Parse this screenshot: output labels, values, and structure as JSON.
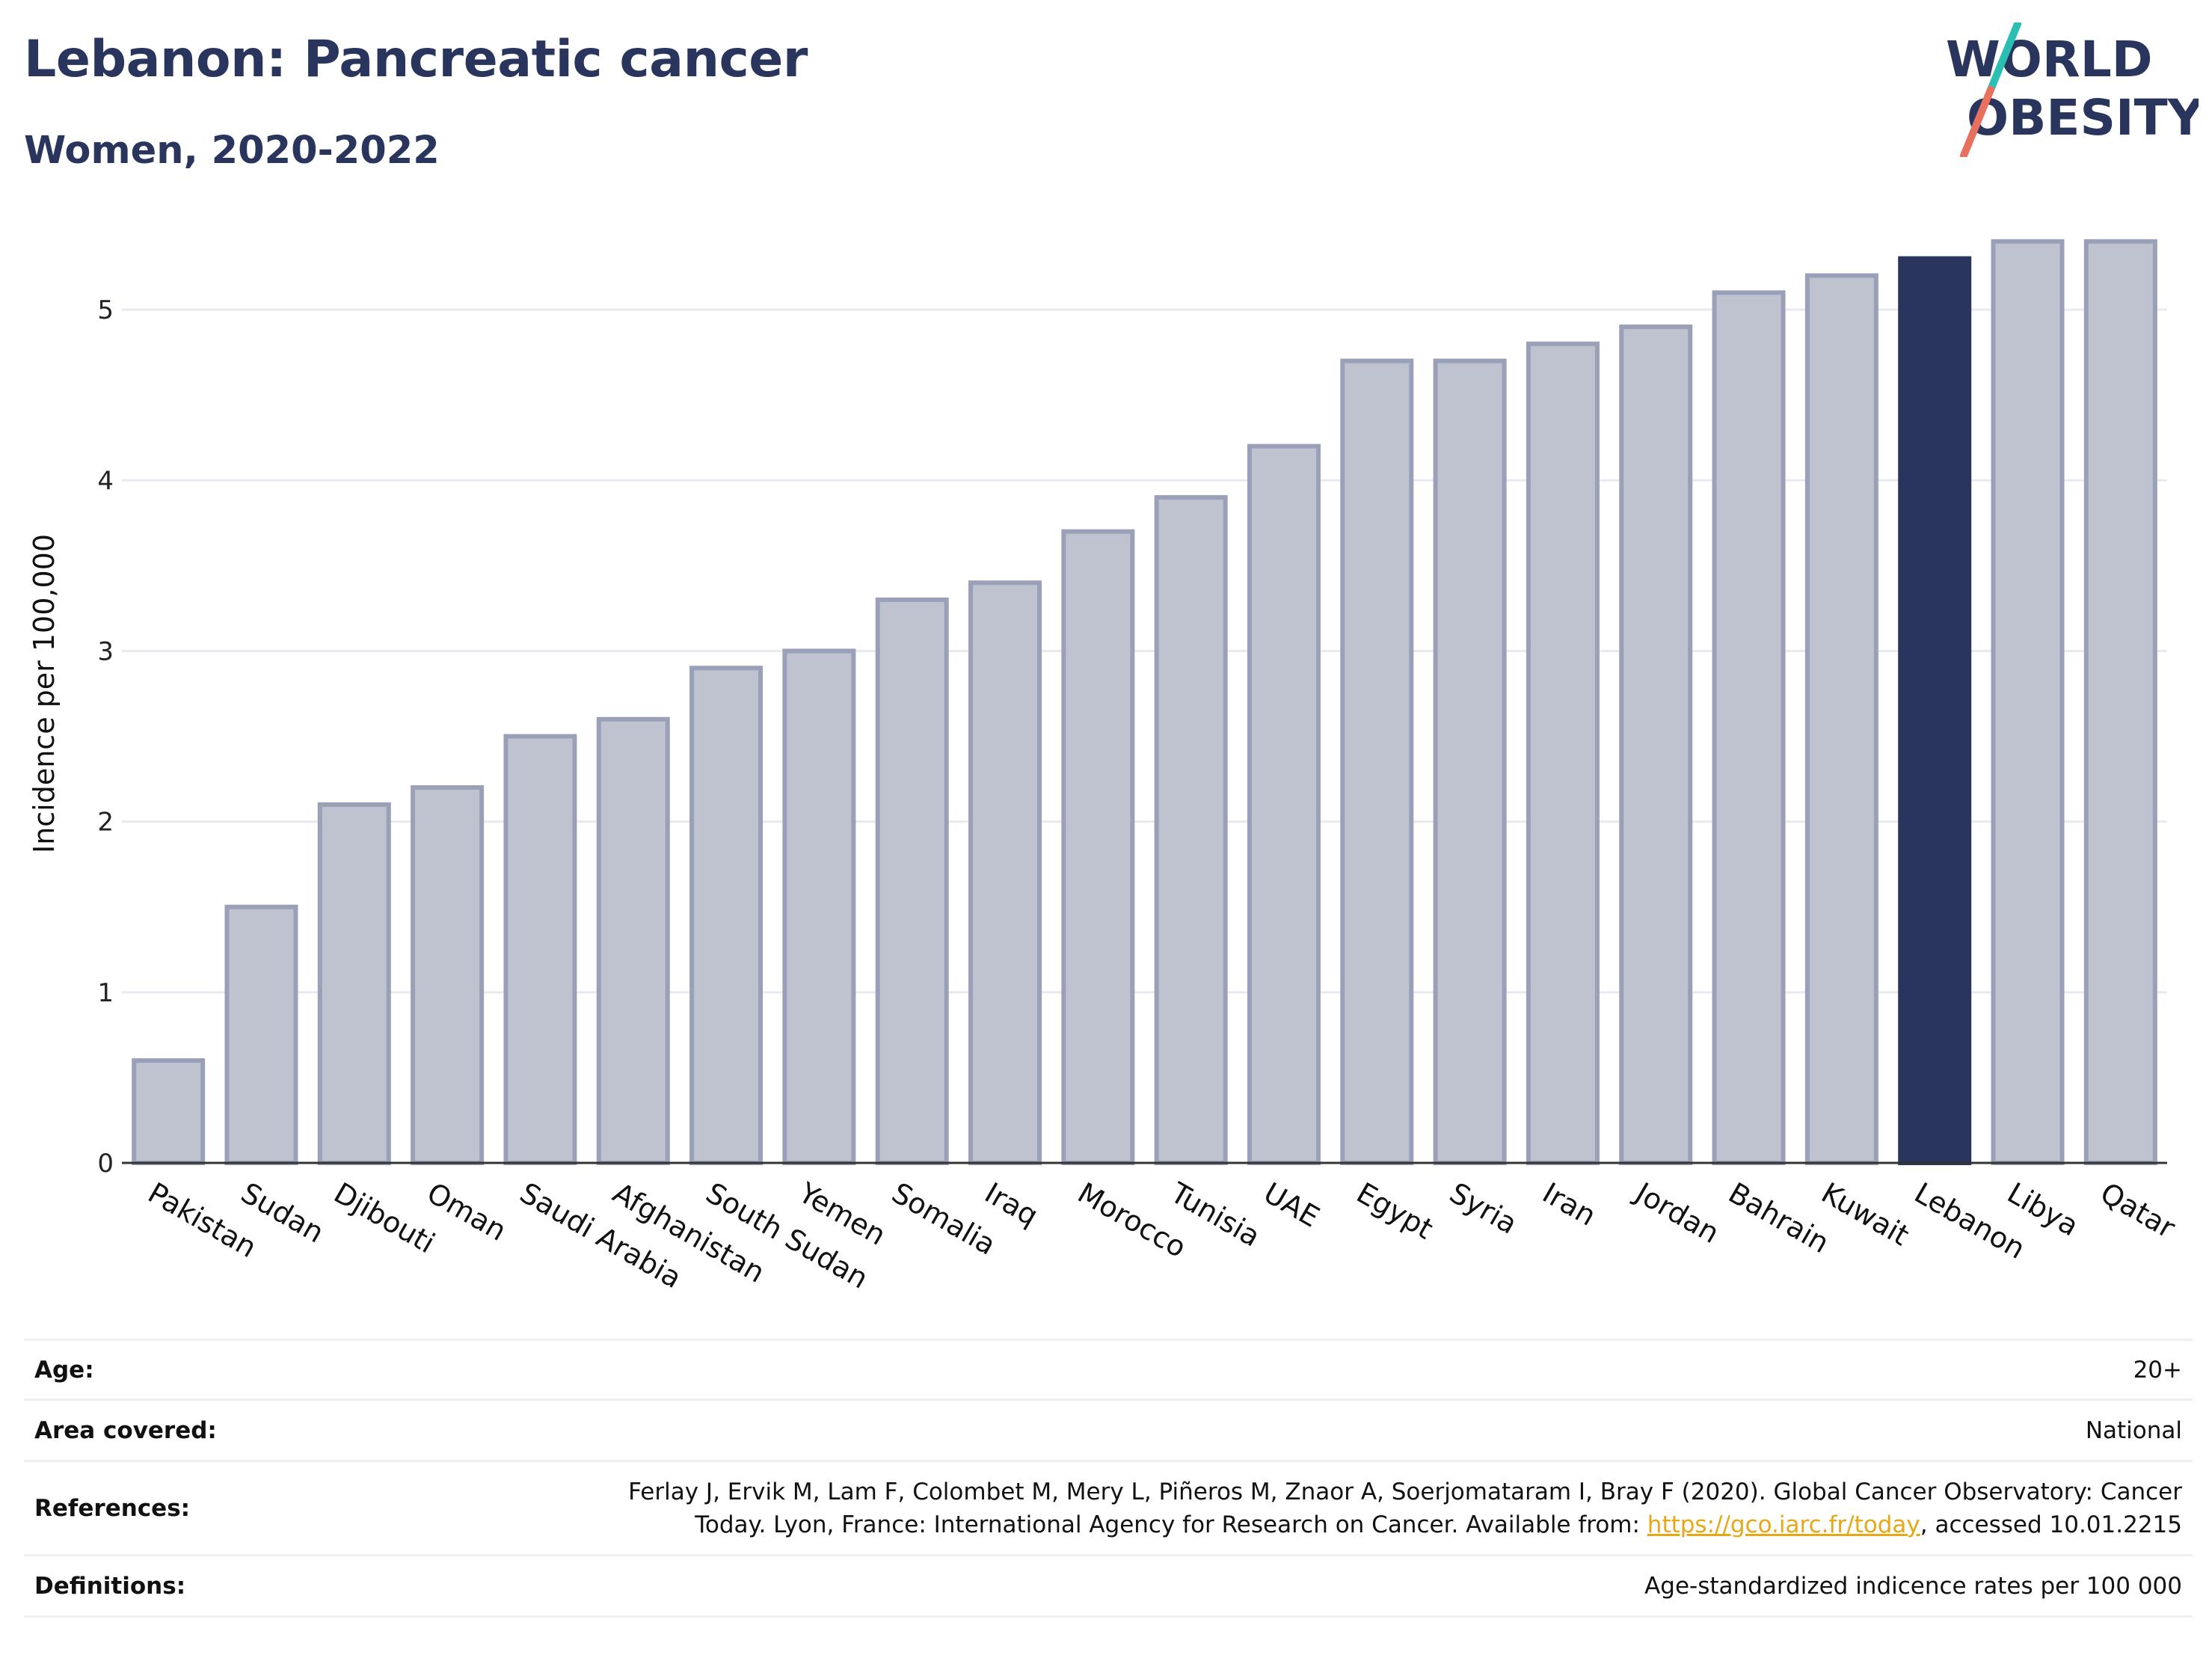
{
  "header": {
    "title": "Lebanon: Pancreatic cancer",
    "subtitle": "Women, 2020-2022"
  },
  "logo": {
    "line1": "WORLD",
    "line2": "OBESITY",
    "slash_top_color": "#2bbfb3",
    "slash_bottom_color": "#e8705f"
  },
  "chart_data": {
    "type": "bar",
    "categories": [
      "Pakistan",
      "Sudan",
      "Djibouti",
      "Oman",
      "Saudi Arabia",
      "Afghanistan",
      "South Sudan",
      "Yemen",
      "Somalia",
      "Iraq",
      "Morocco",
      "Tunisia",
      "UAE",
      "Egypt",
      "Syria",
      "Iran",
      "Jordan",
      "Bahrain",
      "Kuwait",
      "Lebanon",
      "Libya",
      "Qatar"
    ],
    "values": [
      0.6,
      1.5,
      2.1,
      2.2,
      2.5,
      2.6,
      2.9,
      3.0,
      3.3,
      3.4,
      3.7,
      3.9,
      4.2,
      4.7,
      4.7,
      4.8,
      4.9,
      5.1,
      5.2,
      5.3,
      5.4,
      5.4
    ],
    "highlight": "Lebanon",
    "ylabel": "Incidence per 100,000",
    "xlabel": "",
    "ylim": [
      0,
      5.5
    ],
    "yticks": [
      0,
      1,
      2,
      3,
      4,
      5
    ],
    "grid": true,
    "bar_color": "#bfc3d0",
    "bar_edge_color": "#9aa0b8",
    "highlight_color": "#2a355d"
  },
  "info": {
    "rows": [
      {
        "key": "Age:",
        "value": "20+"
      },
      {
        "key": "Area covered:",
        "value": "National"
      },
      {
        "key": "References:",
        "value_line1": "Ferlay J, Ervik M, Lam F, Colombet M, Mery L, Piñeros M, Znaor A, Soerjomataram I, Bray F (2020). Global Cancer Observatory: Cancer",
        "value_line2_pre": "Today. Lyon, France: International Agency for Research on Cancer. Available from: ",
        "link": "https://gco.iarc.fr/today",
        "value_line2_post": ", accessed 10.01.2215"
      },
      {
        "key": "Definitions:",
        "value": "Age-standardized indicence rates per 100 000"
      }
    ]
  }
}
